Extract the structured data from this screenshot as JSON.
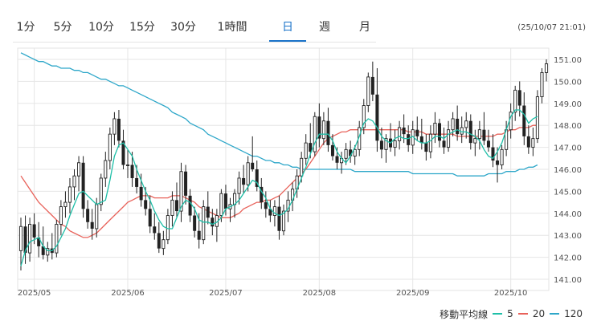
{
  "tabs": [
    {
      "label": "1分",
      "active": false
    },
    {
      "label": "5分",
      "active": false
    },
    {
      "label": "10分",
      "active": false
    },
    {
      "label": "15分",
      "active": false
    },
    {
      "label": "30分",
      "active": false
    },
    {
      "label": "1時間",
      "active": false
    },
    {
      "label": "日",
      "active": true
    },
    {
      "label": "週",
      "active": false
    },
    {
      "label": "月",
      "active": false
    }
  ],
  "timestamp": "(25/10/07 21:01)",
  "colors": {
    "accent": "#1a73c9",
    "ma5": "#1fbfa8",
    "ma20": "#e8625a",
    "ma120": "#2ea7c9",
    "candle": "#222222",
    "grid": "#e6e6e6"
  },
  "legend": {
    "title": "移動平均線",
    "ma5": "5",
    "ma20": "20",
    "ma120": "120"
  },
  "chart_data": {
    "type": "candlestick",
    "ylim": [
      141.0,
      151.0
    ],
    "yticks": [
      "141.00",
      "142.00",
      "143.00",
      "144.00",
      "145.00",
      "146.00",
      "147.00",
      "148.00",
      "149.00",
      "150.00",
      "151.00"
    ],
    "xticks": [
      "2025/05",
      "2025/06",
      "2025/07",
      "2025/08",
      "2025/09",
      "2025/10"
    ],
    "month_start_index": [
      3,
      24,
      46,
      67,
      88,
      110
    ],
    "ohlc": [
      [
        142.3,
        143.8,
        141.4,
        143.4
      ],
      [
        143.4,
        143.9,
        141.7,
        142.2
      ],
      [
        142.2,
        143.8,
        141.8,
        143.5
      ],
      [
        143.5,
        144.0,
        142.6,
        142.9
      ],
      [
        142.9,
        143.6,
        142.0,
        142.5
      ],
      [
        142.5,
        143.4,
        141.9,
        142.1
      ],
      [
        142.1,
        142.7,
        141.8,
        142.4
      ],
      [
        142.4,
        143.1,
        141.9,
        142.2
      ],
      [
        142.2,
        143.7,
        142.0,
        143.5
      ],
      [
        143.5,
        144.6,
        143.0,
        144.3
      ],
      [
        144.3,
        145.0,
        143.8,
        144.5
      ],
      [
        144.5,
        145.6,
        144.0,
        145.2
      ],
      [
        145.2,
        146.0,
        144.6,
        145.7
      ],
      [
        145.7,
        146.6,
        145.0,
        146.3
      ],
      [
        146.3,
        146.6,
        143.8,
        144.2
      ],
      [
        144.2,
        144.6,
        143.3,
        143.6
      ],
      [
        143.6,
        144.2,
        142.8,
        143.3
      ],
      [
        143.3,
        144.7,
        142.9,
        144.4
      ],
      [
        144.4,
        145.8,
        144.1,
        145.6
      ],
      [
        145.6,
        146.8,
        145.2,
        146.4
      ],
      [
        146.4,
        147.9,
        146.0,
        147.6
      ],
      [
        147.6,
        148.6,
        147.1,
        148.3
      ],
      [
        148.3,
        148.7,
        147.0,
        147.3
      ],
      [
        147.3,
        147.8,
        146.0,
        146.2
      ],
      [
        146.2,
        146.9,
        145.6,
        146.2
      ],
      [
        146.2,
        146.8,
        145.2,
        145.6
      ],
      [
        145.6,
        146.2,
        144.9,
        145.2
      ],
      [
        145.2,
        145.8,
        144.3,
        144.6
      ],
      [
        144.6,
        145.2,
        143.9,
        144.2
      ],
      [
        144.2,
        144.8,
        143.1,
        143.4
      ],
      [
        143.4,
        144.0,
        142.8,
        143.1
      ],
      [
        143.1,
        143.6,
        142.2,
        142.4
      ],
      [
        142.4,
        143.2,
        142.1,
        142.8
      ],
      [
        142.8,
        144.2,
        142.6,
        143.9
      ],
      [
        143.9,
        145.0,
        143.4,
        144.6
      ],
      [
        144.6,
        145.4,
        143.8,
        144.1
      ],
      [
        144.1,
        146.3,
        143.6,
        145.9
      ],
      [
        145.9,
        146.2,
        144.4,
        144.8
      ],
      [
        144.8,
        145.1,
        143.6,
        143.9
      ],
      [
        143.9,
        144.3,
        142.9,
        143.2
      ],
      [
        143.2,
        144.0,
        142.4,
        142.8
      ],
      [
        142.8,
        144.6,
        142.6,
        144.3
      ],
      [
        144.3,
        145.0,
        143.5,
        143.8
      ],
      [
        143.8,
        144.2,
        143.0,
        143.4
      ],
      [
        143.4,
        144.2,
        142.7,
        143.9
      ],
      [
        143.9,
        145.1,
        143.6,
        144.9
      ],
      [
        144.9,
        145.3,
        143.9,
        144.2
      ],
      [
        144.2,
        144.7,
        143.6,
        144.4
      ],
      [
        144.4,
        145.1,
        143.8,
        144.9
      ],
      [
        144.9,
        145.9,
        144.4,
        145.6
      ],
      [
        145.6,
        146.2,
        144.9,
        145.3
      ],
      [
        145.3,
        146.6,
        145.0,
        146.3
      ],
      [
        146.3,
        147.5,
        145.9,
        146.0
      ],
      [
        146.0,
        146.4,
        145.0,
        145.2
      ],
      [
        145.2,
        145.6,
        144.2,
        144.5
      ],
      [
        144.5,
        145.0,
        143.8,
        144.2
      ],
      [
        144.2,
        144.6,
        143.6,
        143.9
      ],
      [
        143.9,
        144.6,
        143.4,
        144.3
      ],
      [
        144.3,
        144.8,
        142.8,
        143.2
      ],
      [
        143.2,
        144.4,
        143.0,
        144.1
      ],
      [
        144.1,
        145.0,
        143.6,
        144.6
      ],
      [
        144.6,
        145.4,
        144.1,
        145.1
      ],
      [
        145.1,
        146.0,
        144.7,
        145.7
      ],
      [
        145.7,
        146.8,
        145.4,
        146.5
      ],
      [
        146.5,
        147.6,
        146.2,
        147.2
      ],
      [
        147.2,
        148.1,
        146.5,
        146.8
      ],
      [
        146.8,
        148.6,
        146.6,
        148.4
      ],
      [
        148.4,
        149.0,
        147.0,
        147.4
      ],
      [
        147.4,
        148.6,
        147.1,
        148.2
      ],
      [
        148.2,
        148.8,
        146.8,
        147.1
      ],
      [
        147.1,
        147.6,
        146.4,
        146.6
      ],
      [
        146.6,
        147.0,
        146.0,
        146.3
      ],
      [
        146.3,
        146.8,
        145.8,
        146.5
      ],
      [
        146.5,
        147.2,
        146.2,
        146.9
      ],
      [
        146.9,
        147.3,
        146.3,
        146.6
      ],
      [
        146.6,
        147.1,
        146.2,
        146.9
      ],
      [
        146.9,
        148.2,
        146.6,
        147.9
      ],
      [
        147.9,
        149.2,
        147.6,
        148.9
      ],
      [
        148.9,
        150.4,
        148.6,
        150.2
      ],
      [
        150.2,
        150.9,
        149.1,
        149.4
      ],
      [
        149.4,
        150.6,
        146.8,
        147.3
      ],
      [
        147.3,
        147.9,
        146.5,
        146.9
      ],
      [
        146.9,
        147.6,
        146.3,
        147.4
      ],
      [
        147.4,
        148.1,
        146.8,
        147.0
      ],
      [
        147.0,
        147.8,
        146.6,
        147.3
      ],
      [
        147.3,
        148.2,
        146.9,
        147.9
      ],
      [
        147.9,
        148.5,
        147.2,
        147.6
      ],
      [
        147.6,
        148.0,
        146.8,
        147.1
      ],
      [
        147.1,
        148.2,
        146.7,
        147.8
      ],
      [
        147.8,
        148.4,
        147.3,
        147.5
      ],
      [
        147.5,
        148.3,
        146.9,
        147.2
      ],
      [
        147.2,
        147.6,
        146.4,
        146.8
      ],
      [
        146.8,
        148.0,
        146.5,
        147.6
      ],
      [
        147.6,
        148.6,
        147.2,
        148.1
      ],
      [
        148.1,
        148.3,
        147.0,
        147.3
      ],
      [
        147.3,
        147.9,
        146.7,
        147.0
      ],
      [
        147.0,
        148.2,
        146.8,
        147.8
      ],
      [
        147.8,
        148.6,
        147.5,
        148.3
      ],
      [
        148.3,
        148.9,
        147.3,
        147.6
      ],
      [
        147.6,
        148.4,
        147.2,
        147.9
      ],
      [
        147.9,
        148.6,
        147.4,
        148.2
      ],
      [
        148.2,
        148.5,
        146.9,
        147.2
      ],
      [
        147.2,
        147.8,
        146.6,
        147.4
      ],
      [
        147.4,
        148.2,
        146.9,
        147.8
      ],
      [
        147.8,
        148.6,
        147.1,
        147.3
      ],
      [
        147.3,
        147.8,
        146.8,
        147.0
      ],
      [
        147.0,
        147.6,
        146.1,
        146.4
      ],
      [
        146.4,
        147.0,
        145.4,
        146.2
      ],
      [
        146.2,
        147.1,
        146.0,
        146.9
      ],
      [
        146.9,
        148.2,
        146.6,
        147.8
      ],
      [
        147.8,
        149.0,
        147.4,
        148.6
      ],
      [
        148.6,
        149.8,
        148.2,
        149.6
      ],
      [
        149.6,
        150.0,
        148.4,
        148.9
      ],
      [
        148.9,
        149.5,
        147.1,
        147.5
      ],
      [
        147.5,
        148.0,
        146.7,
        147.0
      ],
      [
        147.0,
        147.9,
        146.6,
        147.4
      ],
      [
        147.4,
        149.6,
        147.2,
        149.3
      ],
      [
        149.3,
        150.6,
        149.0,
        150.4
      ],
      [
        150.4,
        151.0,
        150.0,
        150.8
      ]
    ],
    "ma5": [
      141.6,
      142.3,
      142.7,
      142.8,
      142.9,
      142.5,
      142.3,
      142.3,
      142.5,
      142.9,
      143.3,
      143.9,
      144.4,
      144.9,
      145.0,
      144.8,
      144.6,
      144.4,
      144.5,
      144.6,
      145.5,
      146.6,
      147.1,
      147.2,
      146.9,
      146.6,
      146.0,
      145.5,
      145.0,
      144.6,
      144.1,
      143.7,
      143.4,
      143.3,
      143.3,
      143.8,
      144.3,
      144.6,
      144.5,
      144.2,
      143.7,
      143.6,
      143.6,
      143.5,
      143.6,
      143.8,
      144.2,
      144.3,
      144.4,
      144.6,
      144.9,
      145.2,
      145.5,
      145.4,
      145.0,
      144.7,
      144.2,
      144.0,
      143.9,
      144.0,
      144.2,
      144.6,
      145.1,
      145.6,
      146.1,
      146.7,
      147.2,
      147.6,
      147.6,
      147.6,
      147.3,
      146.8,
      146.5,
      146.3,
      146.6,
      147.0,
      147.5,
      148.1,
      148.3,
      148.2,
      147.9,
      147.5,
      147.3,
      147.2,
      147.4,
      147.5,
      147.4,
      147.4,
      147.5,
      147.3,
      147.2,
      147.2,
      147.3,
      147.5,
      147.5,
      147.4,
      147.6,
      147.7,
      147.8,
      147.7,
      147.7,
      147.6,
      147.5,
      147.3,
      146.9,
      146.6,
      146.5,
      146.8,
      147.2,
      147.8,
      148.4,
      148.7,
      148.7,
      148.5,
      148.1,
      148.3,
      148.4
    ],
    "ma20": [
      145.7,
      145.4,
      145.1,
      144.8,
      144.5,
      144.3,
      144.1,
      143.9,
      143.7,
      143.5,
      143.4,
      143.2,
      143.1,
      143.0,
      142.9,
      142.9,
      143.0,
      143.1,
      143.3,
      143.5,
      143.7,
      143.9,
      144.1,
      144.3,
      144.5,
      144.6,
      144.7,
      144.8,
      144.8,
      144.8,
      144.7,
      144.7,
      144.7,
      144.7,
      144.8,
      144.8,
      144.8,
      144.7,
      144.6,
      144.5,
      144.3,
      144.2,
      144.1,
      144.0,
      143.9,
      143.8,
      143.8,
      143.8,
      143.9,
      144.0,
      144.2,
      144.3,
      144.4,
      144.5,
      144.5,
      144.6,
      144.6,
      144.7,
      144.8,
      145.0,
      145.2,
      145.4,
      145.6,
      145.8,
      146.0,
      146.3,
      146.6,
      146.9,
      147.2,
      147.4,
      147.5,
      147.6,
      147.7,
      147.7,
      147.8,
      147.8,
      147.8,
      147.8,
      147.8,
      147.8,
      147.8,
      147.8,
      147.8,
      147.8,
      147.8,
      147.8,
      147.8,
      147.7,
      147.7,
      147.7,
      147.7,
      147.6,
      147.6,
      147.6,
      147.6,
      147.6,
      147.6,
      147.6,
      147.5,
      147.5,
      147.5,
      147.5,
      147.5,
      147.5,
      147.5,
      147.5,
      147.5,
      147.6,
      147.6,
      147.7,
      147.8,
      147.8,
      147.9,
      147.9,
      147.9,
      148.0,
      148.0
    ],
    "ma120": [
      151.3,
      151.2,
      151.1,
      151.0,
      150.9,
      150.9,
      150.8,
      150.7,
      150.7,
      150.6,
      150.6,
      150.6,
      150.5,
      150.5,
      150.4,
      150.4,
      150.3,
      150.2,
      150.1,
      150.1,
      150.0,
      149.9,
      149.8,
      149.8,
      149.7,
      149.6,
      149.5,
      149.4,
      149.3,
      149.2,
      149.1,
      149.0,
      148.9,
      148.8,
      148.6,
      148.5,
      148.4,
      148.3,
      148.1,
      148.0,
      147.9,
      147.8,
      147.6,
      147.5,
      147.4,
      147.3,
      147.2,
      147.1,
      147.0,
      146.9,
      146.8,
      146.7,
      146.6,
      146.6,
      146.5,
      146.4,
      146.4,
      146.3,
      146.3,
      146.2,
      146.2,
      146.1,
      146.1,
      146.0,
      146.0,
      146.0,
      146.0,
      146.0,
      146.0,
      146.0,
      146.0,
      146.0,
      146.0,
      146.0,
      146.0,
      145.9,
      145.9,
      145.9,
      145.9,
      145.9,
      145.9,
      145.9,
      145.9,
      145.9,
      145.9,
      145.9,
      145.9,
      145.9,
      145.8,
      145.8,
      145.8,
      145.8,
      145.8,
      145.8,
      145.8,
      145.8,
      145.8,
      145.8,
      145.7,
      145.7,
      145.7,
      145.7,
      145.7,
      145.7,
      145.7,
      145.8,
      145.8,
      145.8,
      145.8,
      145.9,
      145.9,
      145.9,
      146.0,
      146.0,
      146.1,
      146.1,
      146.2
    ]
  }
}
